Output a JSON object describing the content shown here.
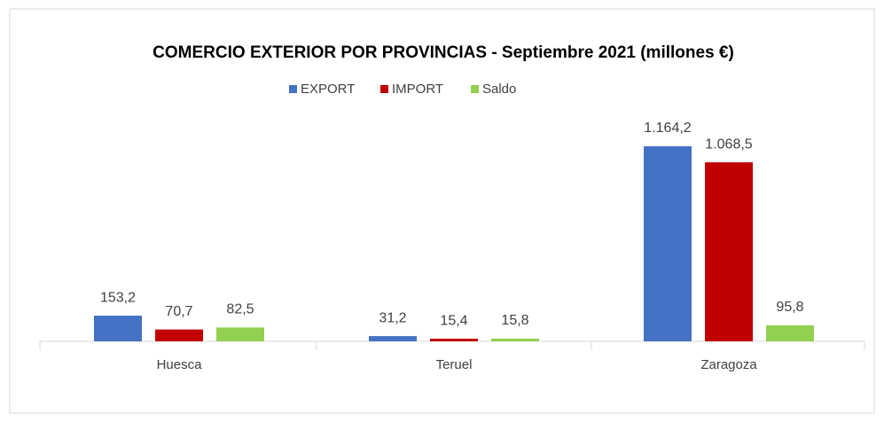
{
  "chart_data": {
    "type": "bar",
    "title": "COMERCIO EXTERIOR POR PROVINCIAS  - Septiembre 2021 (millones €)",
    "categories": [
      "Huesca",
      "Teruel",
      "Zaragoza"
    ],
    "series": [
      {
        "name": "EXPORT",
        "color": "#4472c4",
        "values": [
          153.2,
          31.2,
          1164.2
        ],
        "value_labels": [
          "153,2",
          "31,2",
          "1.164,2"
        ]
      },
      {
        "name": "IMPORT",
        "color": "#c00000",
        "values": [
          70.7,
          15.4,
          1068.5
        ],
        "value_labels": [
          "70,7",
          "15,4",
          "1.068,5"
        ]
      },
      {
        "name": "Saldo",
        "color": "#92d050",
        "values": [
          82.5,
          15.8,
          95.8
        ],
        "value_labels": [
          "82,5",
          "15,8",
          "95,8"
        ]
      }
    ],
    "legend": "top"
  }
}
